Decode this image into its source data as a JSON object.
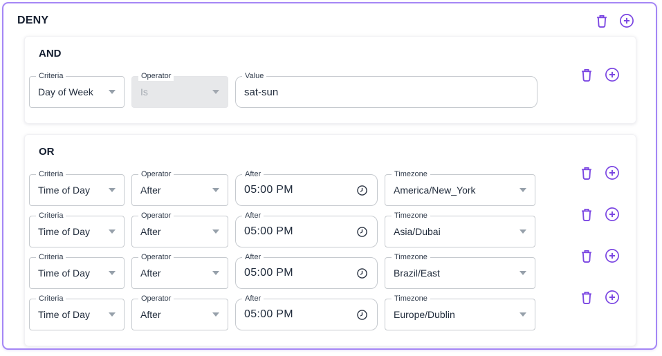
{
  "header": {
    "title": "DENY"
  },
  "field_labels": {
    "criteria": "Criteria",
    "operator": "Operator",
    "value": "Value",
    "after": "After",
    "timezone": "Timezone"
  },
  "and_group": {
    "label": "AND",
    "rows": [
      {
        "criteria": "Day of Week",
        "operator": "Is",
        "operator_disabled": true,
        "value": "sat-sun"
      }
    ]
  },
  "or_group": {
    "label": "OR",
    "rows": [
      {
        "criteria": "Time of Day",
        "operator": "After",
        "time": "05:00 PM",
        "timezone": "America/New_York"
      },
      {
        "criteria": "Time of Day",
        "operator": "After",
        "time": "05:00 PM",
        "timezone": "Asia/Dubai"
      },
      {
        "criteria": "Time of Day",
        "operator": "After",
        "time": "05:00 PM",
        "timezone": "Brazil/East"
      },
      {
        "criteria": "Time of Day",
        "operator": "After",
        "time": "05:00 PM",
        "timezone": "Europe/Dublin"
      }
    ]
  },
  "icons": {
    "delete": "trash-icon",
    "add": "plus-circle-icon",
    "time_picker": "clock-icon",
    "select": "caret-down-icon"
  },
  "colors": {
    "accent_purple": "#7a45e2",
    "frame_border": "#a486f5",
    "text_dark": "#212c3c",
    "label_text": "#333e4e",
    "field_border": "#c6cacf",
    "disabled_bg": "#e7e8ea",
    "disabled_text": "#a2a8b0"
  }
}
